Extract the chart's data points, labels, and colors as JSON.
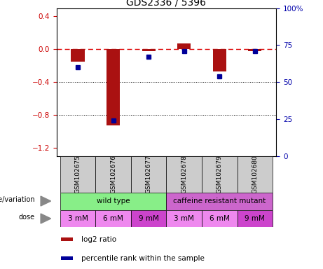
{
  "title": "GDS2336 / 5396",
  "samples": [
    "GSM102675",
    "GSM102676",
    "GSM102677",
    "GSM102678",
    "GSM102679",
    "GSM102680"
  ],
  "log2_ratio": [
    -0.15,
    -0.93,
    -0.02,
    0.07,
    -0.27,
    -0.02
  ],
  "percentile_rank": [
    60,
    24,
    67,
    71,
    54,
    71
  ],
  "ylim_left": [
    -1.3,
    0.5
  ],
  "ylim_right": [
    0,
    100
  ],
  "yticks_left": [
    0.4,
    0.0,
    -0.4,
    -0.8,
    -1.2
  ],
  "yticks_right": [
    100,
    75,
    50,
    25,
    0
  ],
  "hlines_dotted": [
    -0.4,
    -0.8
  ],
  "genotype_groups": [
    {
      "label": "wild type",
      "start": 0,
      "end": 3,
      "color": "#88EE88"
    },
    {
      "label": "caffeine resistant mutant",
      "start": 3,
      "end": 6,
      "color": "#CC66CC"
    }
  ],
  "doses": [
    "3 mM",
    "6 mM",
    "9 mM",
    "3 mM",
    "6 mM",
    "9 mM"
  ],
  "dose_bg": [
    "#EE88EE",
    "#EE88EE",
    "#CC44CC",
    "#EE88EE",
    "#EE88EE",
    "#CC44CC"
  ],
  "bar_color": "#AA1111",
  "dot_color": "#000099",
  "ref_line_color": "#DD0000",
  "legend_log2_color": "#AA1111",
  "legend_pct_color": "#000099",
  "sample_bg": "#cccccc",
  "arrow_color": "#888888"
}
